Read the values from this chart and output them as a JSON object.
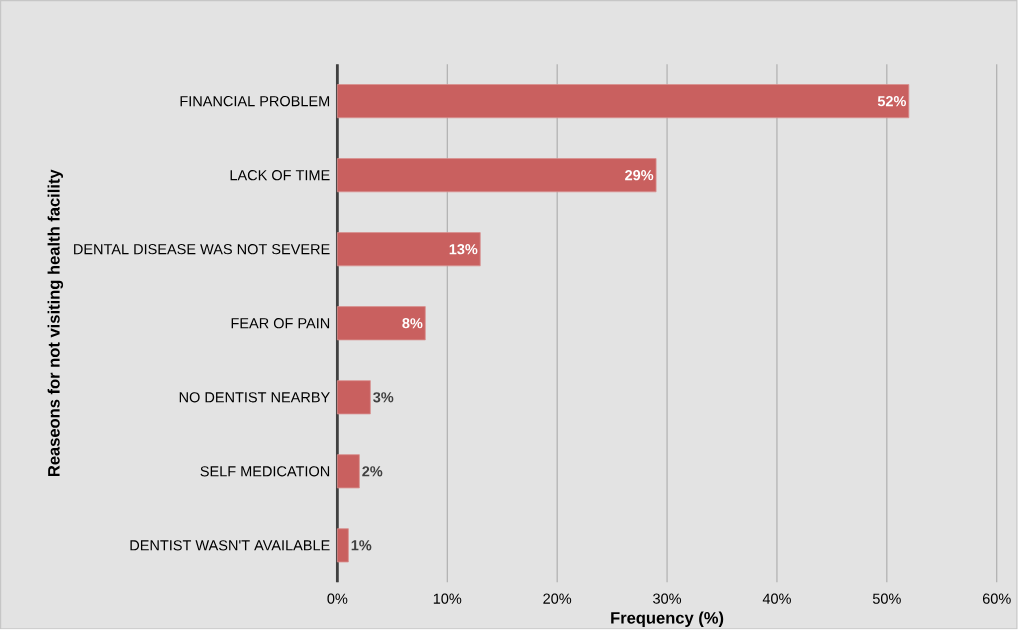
{
  "chart_data": {
    "type": "bar",
    "orientation": "horizontal",
    "xlabel": "Frequency (%)",
    "ylabel": "Reaseons for not visiting health facility",
    "categories": [
      "FINANCIAL PROBLEM",
      "LACK OF TIME",
      "DENTAL DISEASE WAS NOT SEVERE",
      "FEAR OF PAIN",
      "NO DENTIST NEARBY",
      "SELF MEDICATION",
      "DENTIST WASN'T AVAILABLE"
    ],
    "values": [
      52,
      29,
      13,
      8,
      3,
      2,
      1
    ],
    "color": "#c9605f",
    "xlim": [
      0,
      60
    ],
    "xticks": [
      {
        "value": 0,
        "label": "0%"
      },
      {
        "value": 10,
        "label": "10%"
      },
      {
        "value": 20,
        "label": "20%"
      },
      {
        "value": 30,
        "label": "30%"
      },
      {
        "value": 40,
        "label": "40%"
      },
      {
        "value": 50,
        "label": "50%"
      },
      {
        "value": 60,
        "label": "60%"
      }
    ],
    "value_labels": [
      "52%",
      "29%",
      "13%",
      "8%",
      "3%",
      "2%",
      "1%"
    ],
    "grid": "x"
  }
}
